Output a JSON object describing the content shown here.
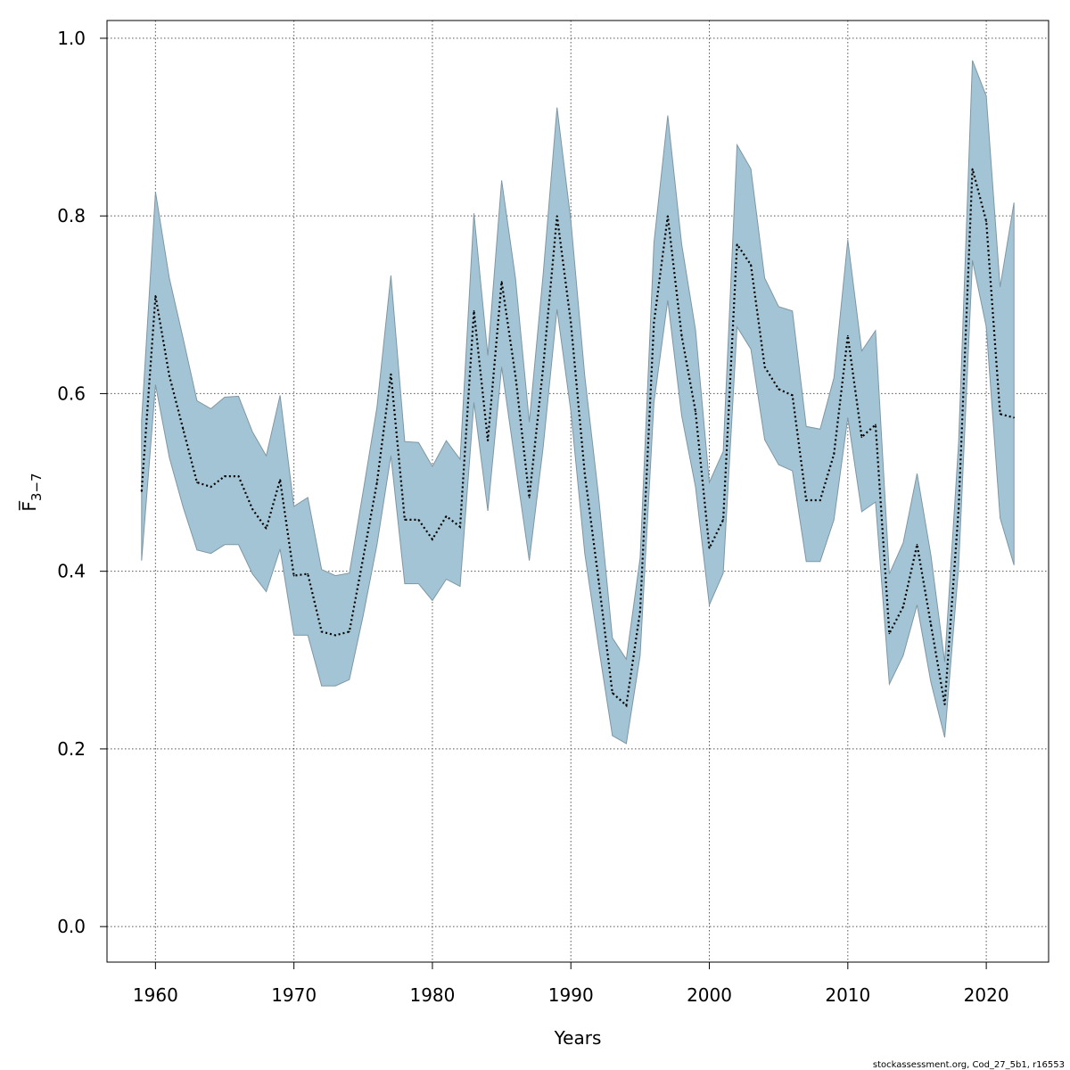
{
  "chart_data": {
    "type": "area",
    "title": "",
    "xlabel": "Years",
    "ylabel": "F̅",
    "ylabel_subscript": "3−7",
    "xlim": [
      1956.5,
      2024.5
    ],
    "ylim": [
      -0.04,
      1.02
    ],
    "xticks": [
      1960,
      1970,
      1980,
      1990,
      2000,
      2010,
      2020
    ],
    "yticks": [
      0.0,
      0.2,
      0.4,
      0.6,
      0.8,
      1.0
    ],
    "ytick_labels": [
      "0.0",
      "0.2",
      "0.4",
      "0.6",
      "0.8",
      "1.0"
    ],
    "grid": true,
    "colors": {
      "band": "#a3c4d5",
      "band_edge": "#7e97a4",
      "line": "#000000",
      "grid": "#555555"
    },
    "years": [
      1959,
      1960,
      1961,
      1962,
      1963,
      1964,
      1965,
      1966,
      1967,
      1968,
      1969,
      1970,
      1971,
      1972,
      1973,
      1974,
      1975,
      1976,
      1977,
      1978,
      1979,
      1980,
      1981,
      1982,
      1983,
      1984,
      1985,
      1986,
      1987,
      1988,
      1989,
      1990,
      1991,
      1992,
      1993,
      1994,
      1995,
      1996,
      1997,
      1998,
      1999,
      2000,
      2001,
      2002,
      2003,
      2004,
      2005,
      2006,
      2007,
      2008,
      2009,
      2010,
      2011,
      2012,
      2013,
      2014,
      2015,
      2016,
      2017,
      2018,
      2019,
      2020,
      2021,
      2022
    ],
    "series": [
      {
        "name": "Estimate",
        "values": [
          0.49,
          0.71,
          0.62,
          0.56,
          0.5,
          0.495,
          0.507,
          0.507,
          0.47,
          0.448,
          0.503,
          0.395,
          0.397,
          0.332,
          0.328,
          0.332,
          0.415,
          0.5,
          0.622,
          0.458,
          0.458,
          0.436,
          0.462,
          0.45,
          0.693,
          0.547,
          0.726,
          0.62,
          0.483,
          0.63,
          0.8,
          0.68,
          0.51,
          0.39,
          0.263,
          0.249,
          0.355,
          0.68,
          0.8,
          0.665,
          0.58,
          0.426,
          0.458,
          0.768,
          0.745,
          0.63,
          0.605,
          0.598,
          0.48,
          0.48,
          0.532,
          0.665,
          0.551,
          0.565,
          0.33,
          0.36,
          0.43,
          0.34,
          0.25,
          0.47,
          0.853,
          0.794,
          0.577,
          0.573
        ]
      },
      {
        "name": "Lower",
        "values": [
          0.412,
          0.61,
          0.528,
          0.472,
          0.424,
          0.42,
          0.43,
          0.43,
          0.397,
          0.377,
          0.425,
          0.328,
          0.328,
          0.271,
          0.271,
          0.278,
          0.35,
          0.43,
          0.53,
          0.386,
          0.386,
          0.367,
          0.391,
          0.383,
          0.59,
          0.468,
          0.63,
          0.52,
          0.412,
          0.54,
          0.695,
          0.58,
          0.42,
          0.315,
          0.215,
          0.206,
          0.305,
          0.59,
          0.705,
          0.575,
          0.495,
          0.362,
          0.398,
          0.675,
          0.65,
          0.548,
          0.52,
          0.513,
          0.411,
          0.411,
          0.458,
          0.573,
          0.467,
          0.478,
          0.273,
          0.305,
          0.362,
          0.275,
          0.213,
          0.405,
          0.75,
          0.675,
          0.46,
          0.407
        ]
      },
      {
        "name": "Upper",
        "values": [
          0.57,
          0.827,
          0.73,
          0.662,
          0.592,
          0.583,
          0.596,
          0.597,
          0.557,
          0.53,
          0.598,
          0.473,
          0.483,
          0.402,
          0.395,
          0.398,
          0.49,
          0.585,
          0.733,
          0.546,
          0.545,
          0.518,
          0.547,
          0.526,
          0.803,
          0.643,
          0.84,
          0.73,
          0.568,
          0.735,
          0.922,
          0.795,
          0.62,
          0.485,
          0.325,
          0.301,
          0.415,
          0.77,
          0.913,
          0.768,
          0.672,
          0.5,
          0.535,
          0.88,
          0.853,
          0.73,
          0.698,
          0.693,
          0.563,
          0.56,
          0.618,
          0.773,
          0.648,
          0.671,
          0.397,
          0.432,
          0.51,
          0.418,
          0.298,
          0.545,
          0.975,
          0.935,
          0.72,
          0.815
        ]
      }
    ]
  },
  "credit": "stockassessment.org, Cod_27_5b1, r16553"
}
